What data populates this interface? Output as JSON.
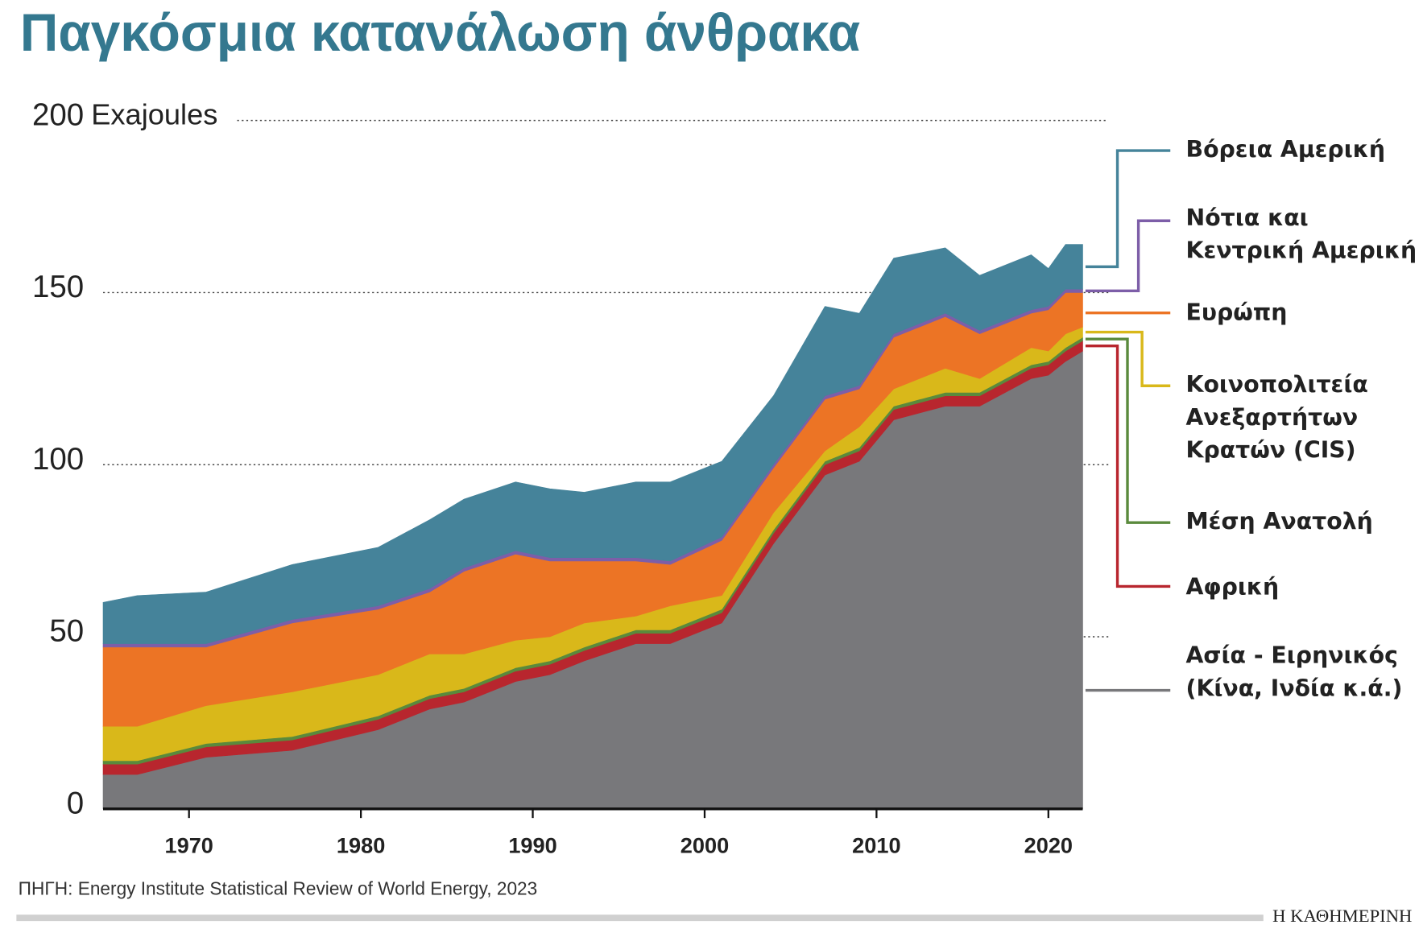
{
  "chart_data": {
    "type": "stacked_area",
    "title": "Παγκόσμια κατανάλωση άνθρακα",
    "y_label": "Exajoules",
    "source": "ΠΗΓΗ: Energy Institute Statistical Review of World Energy, 2023",
    "publisher": "Η ΚΑΘΗΜΕΡΙΝΗ",
    "x": [
      1965,
      1967,
      1971,
      1976,
      1981,
      1984,
      1986,
      1989,
      1991,
      1993,
      1996,
      1998,
      2001,
      2004,
      2007,
      2009,
      2011,
      2014,
      2016,
      2019,
      2020,
      2021,
      2022
    ],
    "xlim": [
      1965,
      2022
    ],
    "xticks": [
      1970,
      1980,
      1990,
      2000,
      2010,
      2020
    ],
    "ylim": [
      0,
      200
    ],
    "yticks": [
      0,
      50,
      100,
      150,
      200
    ],
    "grid": true,
    "series": [
      {
        "name": "Ασία - Ειρηνικός (Κίνα, Ινδία κ.ά.)",
        "color": "#78787b",
        "values": [
          10,
          10,
          15,
          17,
          23,
          29,
          31,
          37,
          39,
          43,
          48,
          48,
          54,
          77,
          97,
          101,
          113,
          117,
          117,
          125,
          126,
          130,
          133
        ]
      },
      {
        "name": "Αφρική",
        "color": "#b8262e",
        "values": [
          3,
          3,
          3,
          3,
          3,
          3,
          3,
          3,
          3,
          3,
          3,
          3,
          3,
          3,
          3,
          3,
          3,
          3,
          3,
          3,
          3,
          3,
          3
        ]
      },
      {
        "name": "Μέση Ανατολή",
        "color": "#5a8a3c",
        "values": [
          1,
          1,
          1,
          1,
          1,
          1,
          1,
          1,
          1,
          1,
          1,
          1,
          1,
          1,
          1,
          1,
          1,
          1,
          1,
          1,
          1,
          1,
          1
        ]
      },
      {
        "name": "Κοινοπολιτεία Ανεξαρτήτων Κρατών (CIS)",
        "color": "#d9b81a",
        "values": [
          10,
          10,
          11,
          13,
          12,
          12,
          10,
          8,
          7,
          7,
          4,
          7,
          4,
          5,
          3,
          6,
          5,
          7,
          4,
          5,
          3,
          4,
          3
        ]
      },
      {
        "name": "Ευρώπη",
        "color": "#ec7425",
        "values": [
          23,
          23,
          17,
          20,
          19,
          18,
          24,
          25,
          22,
          18,
          16,
          12,
          16,
          13,
          15,
          11,
          15,
          15,
          13,
          10,
          12,
          12,
          10
        ]
      },
      {
        "name": "Νότια και Κεντρική Αμερική",
        "color": "#7d5ea8",
        "values": [
          1,
          1,
          1,
          1,
          1,
          1,
          1,
          1,
          1,
          1,
          1,
          1,
          1,
          1,
          1,
          1,
          1,
          1,
          1,
          1,
          1,
          1,
          1
        ]
      },
      {
        "name": "Βόρεια Αμερική",
        "color": "#45839a",
        "values": [
          12,
          14,
          15,
          16,
          17,
          20,
          20,
          20,
          20,
          19,
          22,
          23,
          22,
          20,
          26,
          21,
          22,
          19,
          16,
          16,
          11,
          13,
          13
        ]
      }
    ]
  }
}
